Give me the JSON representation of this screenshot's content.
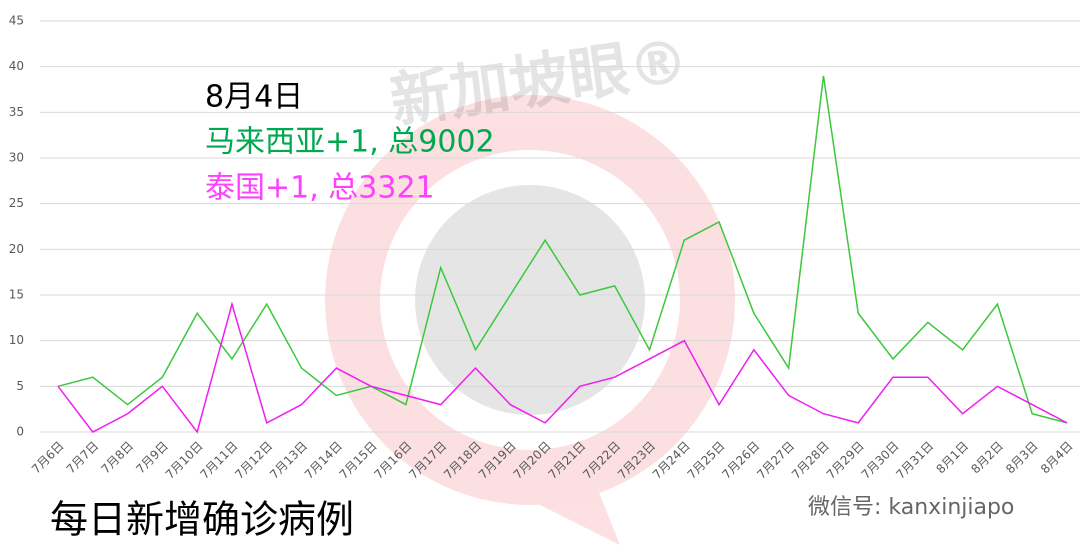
{
  "chart_data": {
    "type": "line",
    "annotations": [
      "8月4日",
      "马来西亚+1, 总9002",
      "泰国+1, 总3321"
    ],
    "title": "每日新增确诊病例",
    "watermark": "新加坡眼®",
    "credit": "微信号: kanxinjiapo",
    "categories": [
      "7月6日",
      "7月7日",
      "7月8日",
      "7月9日",
      "7月10日",
      "7月11日",
      "7月12日",
      "7月13日",
      "7月14日",
      "7月15日",
      "7月16日",
      "7月17日",
      "7月18日",
      "7月19日",
      "7月20日",
      "7月21日",
      "7月22日",
      "7月23日",
      "7月24日",
      "7月25日",
      "7月26日",
      "7月27日",
      "7月28日",
      "7月29日",
      "7月30日",
      "7月31日",
      "8月1日",
      "8月2日",
      "8月3日",
      "8月4日"
    ],
    "series": [
      {
        "color": "#3cc83c",
        "values": [
          5,
          6,
          3,
          6,
          13,
          8,
          14,
          7,
          4,
          5,
          3,
          18,
          9,
          15,
          21,
          15,
          16,
          9,
          21,
          23,
          13,
          7,
          39,
          13,
          8,
          12,
          9,
          14,
          2,
          1
        ]
      },
      {
        "color": "#f01ef0",
        "values": [
          5,
          0,
          2,
          5,
          0,
          14,
          1,
          3,
          7,
          5,
          4,
          3,
          7,
          3,
          1,
          5,
          6,
          8,
          10,
          3,
          9,
          4,
          2,
          1,
          6,
          6,
          2,
          5,
          3,
          1
        ]
      }
    ],
    "ylim": [
      0,
      45
    ],
    "yticks": [
      0,
      5,
      10,
      15,
      20,
      25,
      30,
      35,
      40,
      45
    ],
    "grid": true
  }
}
